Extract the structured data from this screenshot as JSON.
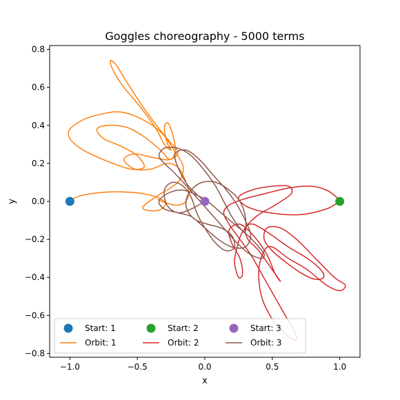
{
  "chart_data": {
    "type": "line",
    "title": "Goggles choreography - 5000 terms",
    "xlabel": "x",
    "ylabel": "y",
    "xlim": [
      -1.15,
      1.15
    ],
    "ylim": [
      -0.82,
      0.82
    ],
    "xticks": [
      -1.0,
      -0.5,
      0.0,
      0.5,
      1.0
    ],
    "xtick_labels": [
      "−1.0",
      "−0.5",
      "0.0",
      "0.5",
      "1.0"
    ],
    "yticks": [
      -0.8,
      -0.6,
      -0.4,
      -0.2,
      0.0,
      0.2,
      0.4,
      0.6,
      0.8
    ],
    "ytick_labels": [
      "−0.8",
      "−0.6",
      "−0.4",
      "−0.2",
      "0.0",
      "0.2",
      "0.4",
      "0.6",
      "0.8"
    ],
    "grid": false,
    "legend": {
      "placement": "lower-left",
      "columns": 3
    },
    "start_points": [
      {
        "name": "Start: 1",
        "x": -1.0,
        "y": 0.0,
        "color": "#1f77b4"
      },
      {
        "name": "Start: 2",
        "x": 1.0,
        "y": 0.0,
        "color": "#2ca02c"
      },
      {
        "name": "Start: 3",
        "x": 0.0,
        "y": 0.0,
        "color": "#9467bd"
      }
    ],
    "series": [
      {
        "name": "Orbit: 1",
        "color": "#ff7f0e",
        "points": [
          [
            -1.0,
            0.0
          ],
          [
            -0.92,
            0.03
          ],
          [
            -0.7,
            0.05
          ],
          [
            -0.45,
            0.04
          ],
          [
            -0.3,
            0.0
          ],
          [
            -0.32,
            -0.04
          ],
          [
            -0.4,
            -0.05
          ],
          [
            -0.46,
            -0.03
          ],
          [
            -0.35,
            0.03
          ],
          [
            -0.2,
            0.1
          ],
          [
            -0.16,
            0.18
          ],
          [
            -0.22,
            0.26
          ],
          [
            -0.32,
            0.36
          ],
          [
            -0.46,
            0.43
          ],
          [
            -0.62,
            0.47
          ],
          [
            -0.76,
            0.46
          ],
          [
            -0.9,
            0.43
          ],
          [
            -1.0,
            0.38
          ],
          [
            -1.0,
            0.33
          ],
          [
            -0.9,
            0.27
          ],
          [
            -0.72,
            0.21
          ],
          [
            -0.55,
            0.17
          ],
          [
            -0.45,
            0.18
          ],
          [
            -0.5,
            0.24
          ],
          [
            -0.62,
            0.29
          ],
          [
            -0.75,
            0.33
          ],
          [
            -0.8,
            0.38
          ],
          [
            -0.72,
            0.4
          ],
          [
            -0.58,
            0.39
          ],
          [
            -0.45,
            0.34
          ],
          [
            -0.33,
            0.27
          ],
          [
            -0.26,
            0.22
          ],
          [
            -0.22,
            0.26
          ],
          [
            -0.23,
            0.33
          ],
          [
            -0.27,
            0.41
          ],
          [
            -0.3,
            0.39
          ],
          [
            -0.28,
            0.31
          ],
          [
            -0.25,
            0.27
          ],
          [
            -0.3,
            0.3
          ],
          [
            -0.36,
            0.38
          ],
          [
            -0.47,
            0.49
          ],
          [
            -0.6,
            0.6
          ],
          [
            -0.68,
            0.69
          ],
          [
            -0.7,
            0.74
          ],
          [
            -0.66,
            0.72
          ],
          [
            -0.58,
            0.63
          ],
          [
            -0.48,
            0.52
          ],
          [
            -0.38,
            0.42
          ],
          [
            -0.28,
            0.33
          ],
          [
            -0.2,
            0.26
          ],
          [
            -0.26,
            0.22
          ],
          [
            -0.38,
            0.23
          ],
          [
            -0.52,
            0.25
          ],
          [
            -0.6,
            0.22
          ],
          [
            -0.52,
            0.17
          ],
          [
            -0.4,
            0.17
          ],
          [
            -0.28,
            0.2
          ],
          [
            -0.2,
            0.18
          ],
          [
            -0.15,
            0.12
          ],
          [
            -0.12,
            0.05
          ],
          [
            -0.14,
            0.0
          ],
          [
            -0.2,
            -0.02
          ],
          [
            -0.28,
            -0.01
          ],
          [
            -0.35,
            0.01
          ]
        ]
      },
      {
        "name": "Orbit: 2",
        "color": "#d62728",
        "points": [
          [
            1.0,
            0.0
          ],
          [
            0.9,
            -0.04
          ],
          [
            0.7,
            -0.07
          ],
          [
            0.48,
            -0.06
          ],
          [
            0.32,
            -0.03
          ],
          [
            0.25,
            0.02
          ],
          [
            0.35,
            0.06
          ],
          [
            0.5,
            0.08
          ],
          [
            0.62,
            0.08
          ],
          [
            0.64,
            0.04
          ],
          [
            0.52,
            -0.02
          ],
          [
            0.38,
            -0.08
          ],
          [
            0.28,
            -0.16
          ],
          [
            0.24,
            -0.24
          ],
          [
            0.22,
            -0.32
          ],
          [
            0.25,
            -0.4
          ],
          [
            0.28,
            -0.38
          ],
          [
            0.26,
            -0.3
          ],
          [
            0.2,
            -0.22
          ],
          [
            0.18,
            -0.15
          ],
          [
            0.26,
            -0.12
          ],
          [
            0.36,
            -0.18
          ],
          [
            0.46,
            -0.28
          ],
          [
            0.52,
            -0.38
          ],
          [
            0.56,
            -0.42
          ],
          [
            0.5,
            -0.36
          ],
          [
            0.4,
            -0.26
          ],
          [
            0.32,
            -0.2
          ],
          [
            0.3,
            -0.14
          ],
          [
            0.36,
            -0.12
          ],
          [
            0.48,
            -0.17
          ],
          [
            0.62,
            -0.24
          ],
          [
            0.76,
            -0.3
          ],
          [
            0.86,
            -0.36
          ],
          [
            0.88,
            -0.4
          ],
          [
            0.82,
            -0.41
          ],
          [
            0.72,
            -0.38
          ],
          [
            0.6,
            -0.32
          ],
          [
            0.5,
            -0.26
          ],
          [
            0.44,
            -0.2
          ],
          [
            0.46,
            -0.14
          ],
          [
            0.56,
            -0.14
          ],
          [
            0.68,
            -0.2
          ],
          [
            0.82,
            -0.3
          ],
          [
            0.96,
            -0.4
          ],
          [
            1.04,
            -0.44
          ],
          [
            1.0,
            -0.47
          ],
          [
            0.9,
            -0.44
          ],
          [
            0.76,
            -0.36
          ],
          [
            0.62,
            -0.3
          ],
          [
            0.5,
            -0.24
          ],
          [
            0.44,
            -0.26
          ],
          [
            0.4,
            -0.36
          ],
          [
            0.42,
            -0.5
          ],
          [
            0.5,
            -0.62
          ],
          [
            0.6,
            -0.7
          ],
          [
            0.68,
            -0.73
          ],
          [
            0.66,
            -0.68
          ],
          [
            0.58,
            -0.58
          ],
          [
            0.5,
            -0.48
          ],
          [
            0.42,
            -0.38
          ],
          [
            0.34,
            -0.28
          ],
          [
            0.26,
            -0.2
          ],
          [
            0.18,
            -0.12
          ],
          [
            0.14,
            -0.06
          ],
          [
            0.18,
            -0.02
          ],
          [
            0.28,
            0.01
          ],
          [
            0.44,
            0.04
          ],
          [
            0.62,
            0.07
          ],
          [
            0.78,
            0.08
          ],
          [
            0.9,
            0.06
          ],
          [
            0.98,
            0.02
          ],
          [
            1.0,
            0.0
          ]
        ]
      },
      {
        "name": "Orbit: 3",
        "color": "#8c564b",
        "points": [
          [
            0.0,
            0.0
          ],
          [
            -0.12,
            0.08
          ],
          [
            -0.2,
            0.18
          ],
          [
            -0.22,
            0.25
          ],
          [
            -0.14,
            0.27
          ],
          [
            -0.04,
            0.22
          ],
          [
            0.06,
            0.14
          ],
          [
            0.16,
            0.06
          ],
          [
            0.24,
            -0.02
          ],
          [
            0.3,
            -0.1
          ],
          [
            0.34,
            -0.18
          ],
          [
            0.3,
            -0.24
          ],
          [
            0.2,
            -0.24
          ],
          [
            0.1,
            -0.2
          ],
          [
            0.0,
            -0.14
          ],
          [
            -0.1,
            -0.08
          ],
          [
            -0.2,
            -0.06
          ],
          [
            -0.3,
            -0.04
          ],
          [
            -0.34,
            0.0
          ],
          [
            -0.28,
            0.04
          ],
          [
            -0.18,
            0.06
          ],
          [
            -0.08,
            0.04
          ],
          [
            0.02,
            0.0
          ],
          [
            0.12,
            -0.06
          ],
          [
            0.22,
            -0.12
          ],
          [
            0.32,
            -0.18
          ],
          [
            0.4,
            -0.24
          ],
          [
            0.44,
            -0.28
          ],
          [
            0.42,
            -0.3
          ],
          [
            0.34,
            -0.28
          ],
          [
            0.24,
            -0.22
          ],
          [
            0.14,
            -0.14
          ],
          [
            0.04,
            -0.06
          ],
          [
            -0.06,
            0.02
          ],
          [
            -0.16,
            0.1
          ],
          [
            -0.24,
            0.16
          ],
          [
            -0.3,
            0.2
          ],
          [
            -0.34,
            0.24
          ],
          [
            -0.3,
            0.28
          ],
          [
            -0.2,
            0.28
          ],
          [
            -0.1,
            0.24
          ],
          [
            0.0,
            0.16
          ],
          [
            0.08,
            0.08
          ],
          [
            0.14,
            0.0
          ],
          [
            0.2,
            -0.08
          ],
          [
            0.26,
            -0.14
          ],
          [
            0.3,
            -0.16
          ],
          [
            0.3,
            -0.08
          ],
          [
            0.26,
            0.0
          ],
          [
            0.18,
            0.06
          ],
          [
            0.08,
            0.1
          ],
          [
            -0.02,
            0.1
          ],
          [
            -0.1,
            0.06
          ],
          [
            -0.14,
            0.0
          ],
          [
            -0.12,
            -0.06
          ],
          [
            -0.06,
            -0.1
          ],
          [
            0.02,
            -0.12
          ],
          [
            0.12,
            -0.14
          ],
          [
            0.2,
            -0.18
          ],
          [
            0.22,
            -0.24
          ],
          [
            0.16,
            -0.26
          ],
          [
            0.08,
            -0.22
          ],
          [
            0.0,
            -0.14
          ],
          [
            -0.06,
            -0.06
          ],
          [
            -0.1,
            0.02
          ],
          [
            -0.16,
            0.08
          ],
          [
            -0.24,
            0.1
          ],
          [
            -0.3,
            0.06
          ],
          [
            -0.28,
            -0.02
          ],
          [
            -0.2,
            -0.06
          ],
          [
            -0.1,
            -0.04
          ],
          [
            0.0,
            0.0
          ]
        ]
      }
    ]
  }
}
